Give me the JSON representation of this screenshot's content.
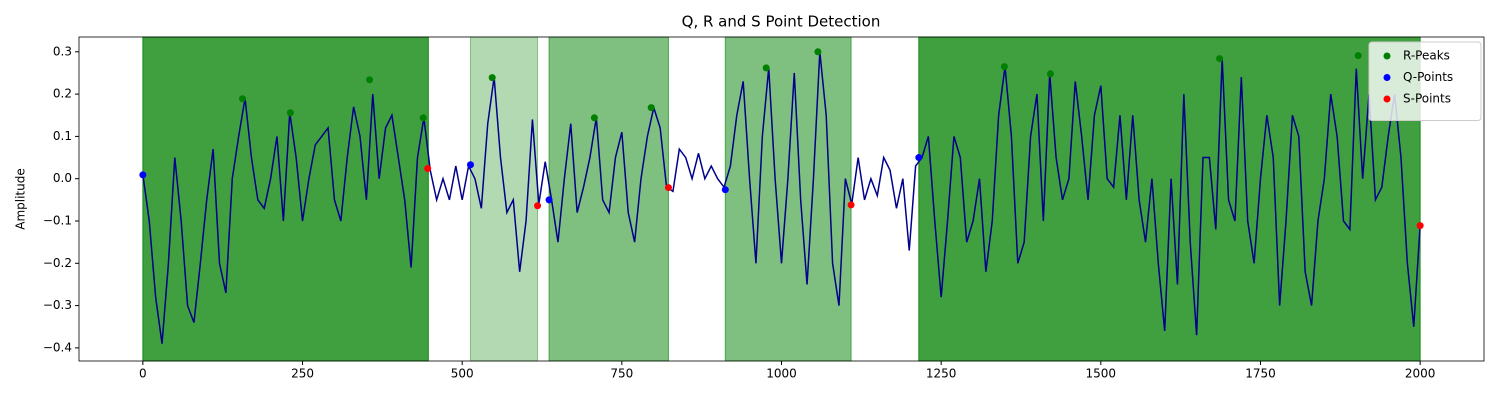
{
  "chart_data": {
    "type": "line",
    "title": "Q, R and S Point Detection",
    "y_label": "Amplitude",
    "xlim": [
      -100,
      2100
    ],
    "ylim": [
      -0.431,
      0.335
    ],
    "xticks": [
      0,
      250,
      500,
      750,
      1000,
      1250,
      1500,
      1750,
      2000
    ],
    "yticks": [
      {
        "value": -0.4,
        "label": "−0.4"
      },
      {
        "value": -0.3,
        "label": "−0.3"
      },
      {
        "value": -0.2,
        "label": "−0.2"
      },
      {
        "value": -0.1,
        "label": "−0.1"
      },
      {
        "value": 0,
        "label": "0.0"
      },
      0.1,
      0.2,
      0.3
    ],
    "region_color": "#008000",
    "regions": [
      {
        "start": 0,
        "end": 447,
        "alpha": 0.75
      },
      {
        "start": 513,
        "end": 618,
        "alpha": 0.3
      },
      {
        "start": 636,
        "end": 823,
        "alpha": 0.5
      },
      {
        "start": 912,
        "end": 1109,
        "alpha": 0.5
      },
      {
        "start": 1215,
        "end": 2000,
        "alpha": 0.75
      }
    ],
    "signal": {
      "color": "#00008b",
      "x": [
        0,
        10,
        20,
        30,
        40,
        50,
        60,
        70,
        80,
        90,
        100,
        110,
        120,
        130,
        140,
        150,
        160,
        170,
        180,
        190,
        200,
        210,
        220,
        230,
        240,
        250,
        260,
        270,
        280,
        290,
        300,
        310,
        320,
        330,
        340,
        350,
        360,
        370,
        380,
        390,
        400,
        410,
        420,
        430,
        440,
        450,
        460,
        470,
        480,
        490,
        500,
        510,
        520,
        530,
        540,
        550,
        560,
        570,
        580,
        590,
        600,
        610,
        620,
        630,
        640,
        650,
        660,
        670,
        680,
        690,
        700,
        710,
        720,
        730,
        740,
        750,
        760,
        770,
        780,
        790,
        800,
        810,
        820,
        830,
        840,
        850,
        860,
        870,
        880,
        890,
        900,
        910,
        920,
        930,
        940,
        950,
        960,
        970,
        980,
        990,
        1000,
        1010,
        1020,
        1030,
        1040,
        1050,
        1060,
        1070,
        1080,
        1090,
        1100,
        1110,
        1120,
        1130,
        1140,
        1150,
        1160,
        1170,
        1180,
        1190,
        1200,
        1210,
        1220,
        1230,
        1240,
        1250,
        1260,
        1270,
        1280,
        1290,
        1300,
        1310,
        1320,
        1330,
        1340,
        1350,
        1360,
        1370,
        1380,
        1390,
        1400,
        1410,
        1420,
        1430,
        1440,
        1450,
        1460,
        1470,
        1480,
        1490,
        1500,
        1510,
        1520,
        1530,
        1540,
        1550,
        1560,
        1570,
        1580,
        1590,
        1600,
        1610,
        1620,
        1630,
        1640,
        1650,
        1660,
        1670,
        1680,
        1690,
        1700,
        1710,
        1720,
        1730,
        1740,
        1750,
        1760,
        1770,
        1780,
        1790,
        1800,
        1810,
        1820,
        1830,
        1840,
        1850,
        1860,
        1870,
        1880,
        1890,
        1900,
        1910,
        1920,
        1930,
        1940,
        1950,
        1960,
        1970,
        1980,
        1990,
        2000
      ],
      "values": [
        0.01,
        -0.1,
        -0.28,
        -0.39,
        -0.2,
        0.05,
        -0.1,
        -0.3,
        -0.34,
        -0.2,
        -0.05,
        0.07,
        -0.2,
        -0.27,
        0.0,
        0.1,
        0.19,
        0.05,
        -0.05,
        -0.07,
        0.0,
        0.1,
        -0.1,
        0.156,
        0.05,
        -0.1,
        0.0,
        0.08,
        0.1,
        0.12,
        -0.05,
        -0.1,
        0.05,
        0.17,
        0.1,
        -0.05,
        0.2,
        0.0,
        0.12,
        0.15,
        0.05,
        -0.05,
        -0.21,
        0.05,
        0.144,
        0.02,
        -0.05,
        0.0,
        -0.05,
        0.03,
        -0.05,
        0.03,
        0.0,
        -0.07,
        0.13,
        0.24,
        0.05,
        -0.08,
        -0.05,
        -0.22,
        -0.1,
        0.14,
        -0.06,
        0.04,
        -0.05,
        -0.15,
        0.0,
        0.13,
        -0.08,
        -0.02,
        0.05,
        0.144,
        -0.05,
        -0.08,
        0.05,
        0.11,
        -0.08,
        -0.15,
        0.0,
        0.1,
        0.168,
        0.12,
        -0.02,
        -0.03,
        0.07,
        0.05,
        0.0,
        0.06,
        0.0,
        0.03,
        0.0,
        -0.02,
        0.03,
        0.15,
        0.23,
        0.0,
        -0.2,
        0.1,
        0.262,
        0.0,
        -0.2,
        0.0,
        0.25,
        -0.05,
        -0.25,
        0.0,
        0.3,
        0.15,
        -0.2,
        -0.3,
        0.0,
        -0.06,
        0.05,
        -0.05,
        0.0,
        -0.04,
        0.05,
        0.02,
        -0.07,
        0.0,
        -0.17,
        0.03,
        0.05,
        0.1,
        -0.1,
        -0.28,
        -0.1,
        0.1,
        0.05,
        -0.15,
        -0.1,
        0.0,
        -0.22,
        -0.1,
        0.15,
        0.265,
        0.1,
        -0.2,
        -0.15,
        0.1,
        0.2,
        -0.1,
        0.248,
        0.05,
        -0.05,
        0.0,
        0.23,
        0.1,
        -0.05,
        0.15,
        0.22,
        0.0,
        -0.02,
        0.15,
        -0.05,
        0.15,
        -0.05,
        -0.15,
        0.0,
        -0.2,
        -0.36,
        0.0,
        -0.25,
        0.2,
        -0.15,
        -0.37,
        0.05,
        0.05,
        -0.12,
        0.284,
        -0.05,
        -0.1,
        0.24,
        -0.1,
        -0.2,
        0.0,
        0.15,
        0.05,
        -0.3,
        -0.1,
        0.15,
        0.1,
        -0.22,
        -0.3,
        -0.1,
        0.0,
        0.2,
        0.1,
        -0.1,
        -0.12,
        0.26,
        0.0,
        0.2,
        -0.05,
        -0.02,
        0.1,
        0.2,
        0.05,
        -0.2,
        -0.35,
        -0.11
      ]
    },
    "series": [
      {
        "name": "R-Peaks",
        "color": "#008000",
        "x": [
          156,
          231,
          355,
          439,
          547,
          707,
          796,
          976,
          1057,
          1349,
          1421,
          1686,
          1903
        ],
        "values": [
          0.189,
          0.156,
          0.234,
          0.144,
          0.239,
          0.144,
          0.168,
          0.262,
          0.3,
          0.265,
          0.248,
          0.284,
          0.291
        ]
      },
      {
        "name": "Q-Points",
        "color": "#0000ff",
        "x": [
          0,
          513,
          636,
          912,
          1215
        ],
        "values": [
          0.009,
          0.033,
          -0.05,
          -0.026,
          0.05
        ]
      },
      {
        "name": "S-Points",
        "color": "#ff0000",
        "x": [
          446,
          618,
          823,
          1109,
          2000
        ],
        "values": [
          0.024,
          -0.064,
          -0.021,
          -0.062,
          -0.111
        ]
      }
    ],
    "legend": "upper right"
  }
}
